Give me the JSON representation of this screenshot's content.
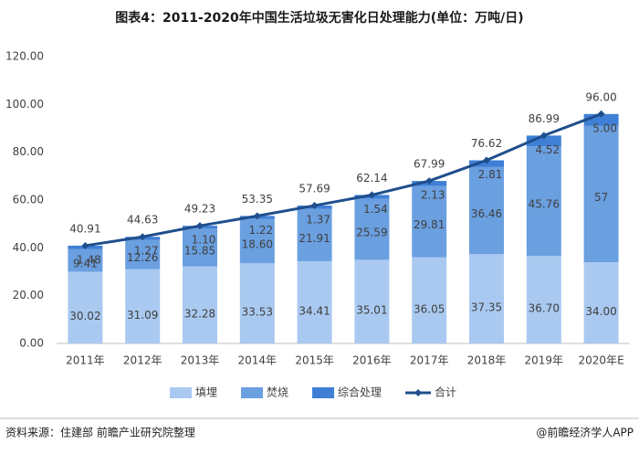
{
  "chart_data": {
    "type": "bar",
    "title": "图表4：2011-2020年中国生活垃圾无害化日处理能力(单位：万吨/日)",
    "categories": [
      "2011年",
      "2012年",
      "2013年",
      "2014年",
      "2015年",
      "2016年",
      "2017年",
      "2018年",
      "2019年",
      "2020年E"
    ],
    "series": [
      {
        "name": "填埋",
        "color": "#a9c9f0",
        "stack": true,
        "values": [
          30.02,
          31.09,
          32.28,
          33.53,
          34.41,
          35.01,
          36.05,
          37.35,
          36.7,
          34.0
        ],
        "value_labels": [
          "30.02",
          "31.09",
          "32.28",
          "33.53",
          "34.41",
          "35.01",
          "36.05",
          "37.35",
          "36.70",
          "34.00"
        ]
      },
      {
        "name": "焚烧",
        "color": "#6a9fe0",
        "stack": true,
        "values": [
          9.41,
          12.26,
          15.85,
          18.6,
          21.91,
          25.59,
          29.81,
          36.46,
          45.76,
          57
        ],
        "value_labels": [
          "9.41",
          "12.26",
          "15.85",
          "18.60",
          "21.91",
          "25.59",
          "29.81",
          "36.46",
          "45.76",
          "57"
        ]
      },
      {
        "name": "综合处理",
        "color": "#3f7fd6",
        "stack": true,
        "values": [
          1.48,
          1.27,
          1.1,
          1.22,
          1.37,
          1.54,
          2.13,
          2.81,
          4.52,
          5.0
        ],
        "value_labels": [
          "1.48",
          "1.27",
          "1.10",
          "1.22",
          "1.37",
          "1.54",
          "2.13",
          "2.81",
          "4.52",
          "5.00"
        ]
      },
      {
        "name": "合计",
        "color": "#1f4e8c",
        "type": "line",
        "values": [
          40.91,
          44.63,
          49.23,
          53.35,
          57.69,
          62.14,
          67.99,
          76.62,
          86.99,
          96.0
        ],
        "value_labels": [
          "40.91",
          "44.63",
          "49.23",
          "53.35",
          "57.69",
          "62.14",
          "67.99",
          "76.62",
          "86.99",
          "96.00"
        ]
      }
    ],
    "ylim": [
      0,
      120
    ],
    "yticks": [
      {
        "value": 0,
        "label": "0.00"
      },
      {
        "value": 20,
        "label": "20.00"
      },
      {
        "value": 40,
        "label": "40.00"
      },
      {
        "value": 60,
        "label": "60.00"
      },
      {
        "value": 80,
        "label": "80.00"
      },
      {
        "value": 100,
        "label": "100.00"
      },
      {
        "value": 120,
        "label": "120.00"
      }
    ],
    "grid": false,
    "legend": "bottom",
    "source": "资料来源：住建部 前瞻产业研究院整理",
    "credit": "@前瞻经济学人APP"
  }
}
